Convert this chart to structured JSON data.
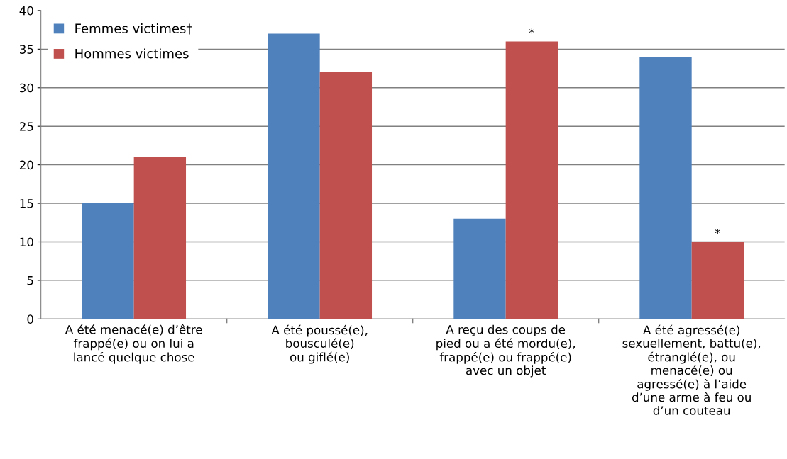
{
  "chart_data": {
    "type": "bar",
    "categories": [
      "A été menacé(e) d’être\nfrappé(e) ou on lui a\nlancé quelque chose",
      "A été poussé(e),\nbousculé(e)\nou giflé(e)",
      "A reçu des coups de\npied ou a été mordu(e),\nfrappé(e) ou frappé(e)\navec un objet",
      "A été agressé(e)\nsexuellement, battu(e),\nétranglé(e), ou\nmenacé(e) ou\nagressé(e) à l’aide\nd’une arme à feu ou\nd’un couteau"
    ],
    "series": [
      {
        "name": "Femmes victimes†",
        "color": "#4f81bd",
        "values": [
          15,
          37,
          13,
          34
        ]
      },
      {
        "name": "Hommes victimes",
        "color": "#c0504d",
        "values": [
          21,
          32,
          36,
          10
        ]
      }
    ],
    "ylim": [
      0,
      40
    ],
    "yticks": [
      0,
      5,
      10,
      15,
      20,
      25,
      30,
      35,
      40
    ],
    "grid": "y",
    "legend": "top left",
    "annotations": [
      {
        "text": "*",
        "x": "A reçu des coups de\npied ou a été mordu(e),\nfrappé(e) ou frappé(e)\navec un objet",
        "y": 36
      },
      {
        "text": "*",
        "x": "A été agressé(e)\nsexuellement, battu(e),\nétranglé(e), ou\nmenacé(e) ou\nagressé(e) à l’aide\nd’une arme à feu ou\nd’un couteau",
        "y": 10
      }
    ]
  }
}
